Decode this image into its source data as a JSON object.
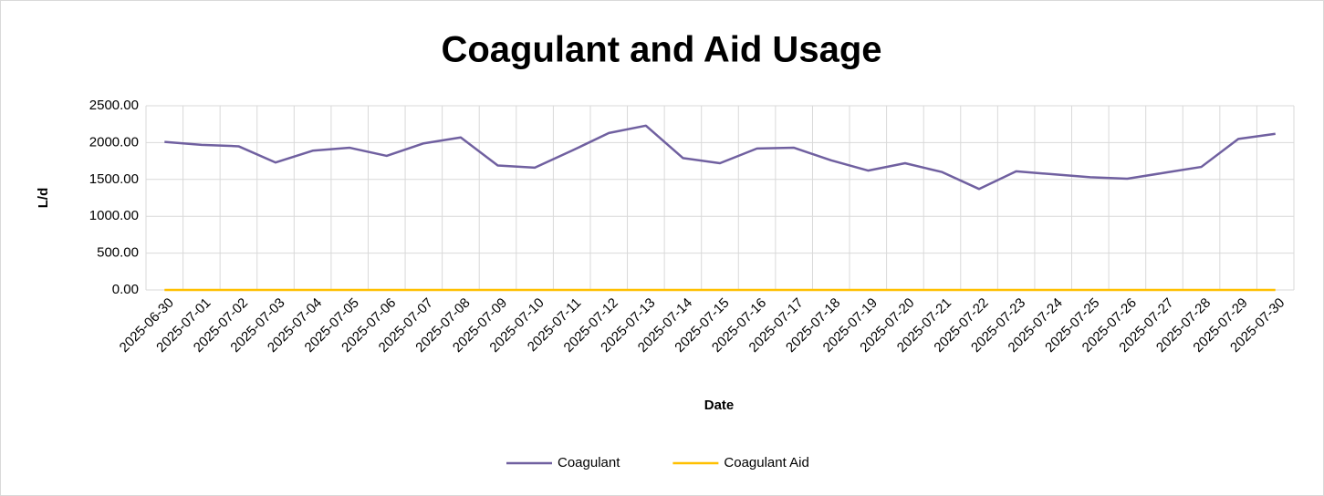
{
  "chart_data": {
    "type": "line",
    "title": "Coagulant and Aid Usage",
    "x_label": "Date",
    "y_label": "L/d",
    "categories": [
      "2025-06-30",
      "2025-07-01",
      "2025-07-02",
      "2025-07-03",
      "2025-07-04",
      "2025-07-05",
      "2025-07-06",
      "2025-07-07",
      "2025-07-08",
      "2025-07-09",
      "2025-07-10",
      "2025-07-11",
      "2025-07-12",
      "2025-07-13",
      "2025-07-14",
      "2025-07-15",
      "2025-07-16",
      "2025-07-17",
      "2025-07-18",
      "2025-07-19",
      "2025-07-20",
      "2025-07-21",
      "2025-07-22",
      "2025-07-23",
      "2025-07-24",
      "2025-07-25",
      "2025-07-26",
      "2025-07-27",
      "2025-07-28",
      "2025-07-29",
      "2025-07-30"
    ],
    "series": [
      {
        "name": "Coagulant",
        "color": "#7060a0",
        "values": [
          2010,
          1970,
          1950,
          1730,
          1890,
          1930,
          1820,
          1990,
          2070,
          1690,
          1660,
          1890,
          2130,
          2230,
          1790,
          1720,
          1920,
          1930,
          1760,
          1620,
          1720,
          1600,
          1370,
          1610,
          1570,
          1530,
          1510,
          1590,
          1670,
          2050,
          2120
        ]
      },
      {
        "name": "Coagulant Aid",
        "color": "#ffc000",
        "values": [
          0,
          0,
          0,
          0,
          0,
          0,
          0,
          0,
          0,
          0,
          0,
          0,
          0,
          0,
          0,
          0,
          0,
          0,
          0,
          0,
          0,
          0,
          0,
          0,
          0,
          0,
          0,
          0,
          0,
          0,
          0
        ]
      }
    ],
    "ylim": [
      0,
      2500
    ],
    "yticks": [
      {
        "value": 0,
        "label": "0.00"
      },
      {
        "value": 500,
        "label": "500.00"
      },
      {
        "value": 1000,
        "label": "1000.00"
      },
      {
        "value": 1500,
        "label": "1500.00"
      },
      {
        "value": 2000,
        "label": "2000.00"
      },
      {
        "value": 2500,
        "label": "2500.00"
      }
    ],
    "grid": true,
    "legend": "bottom"
  }
}
